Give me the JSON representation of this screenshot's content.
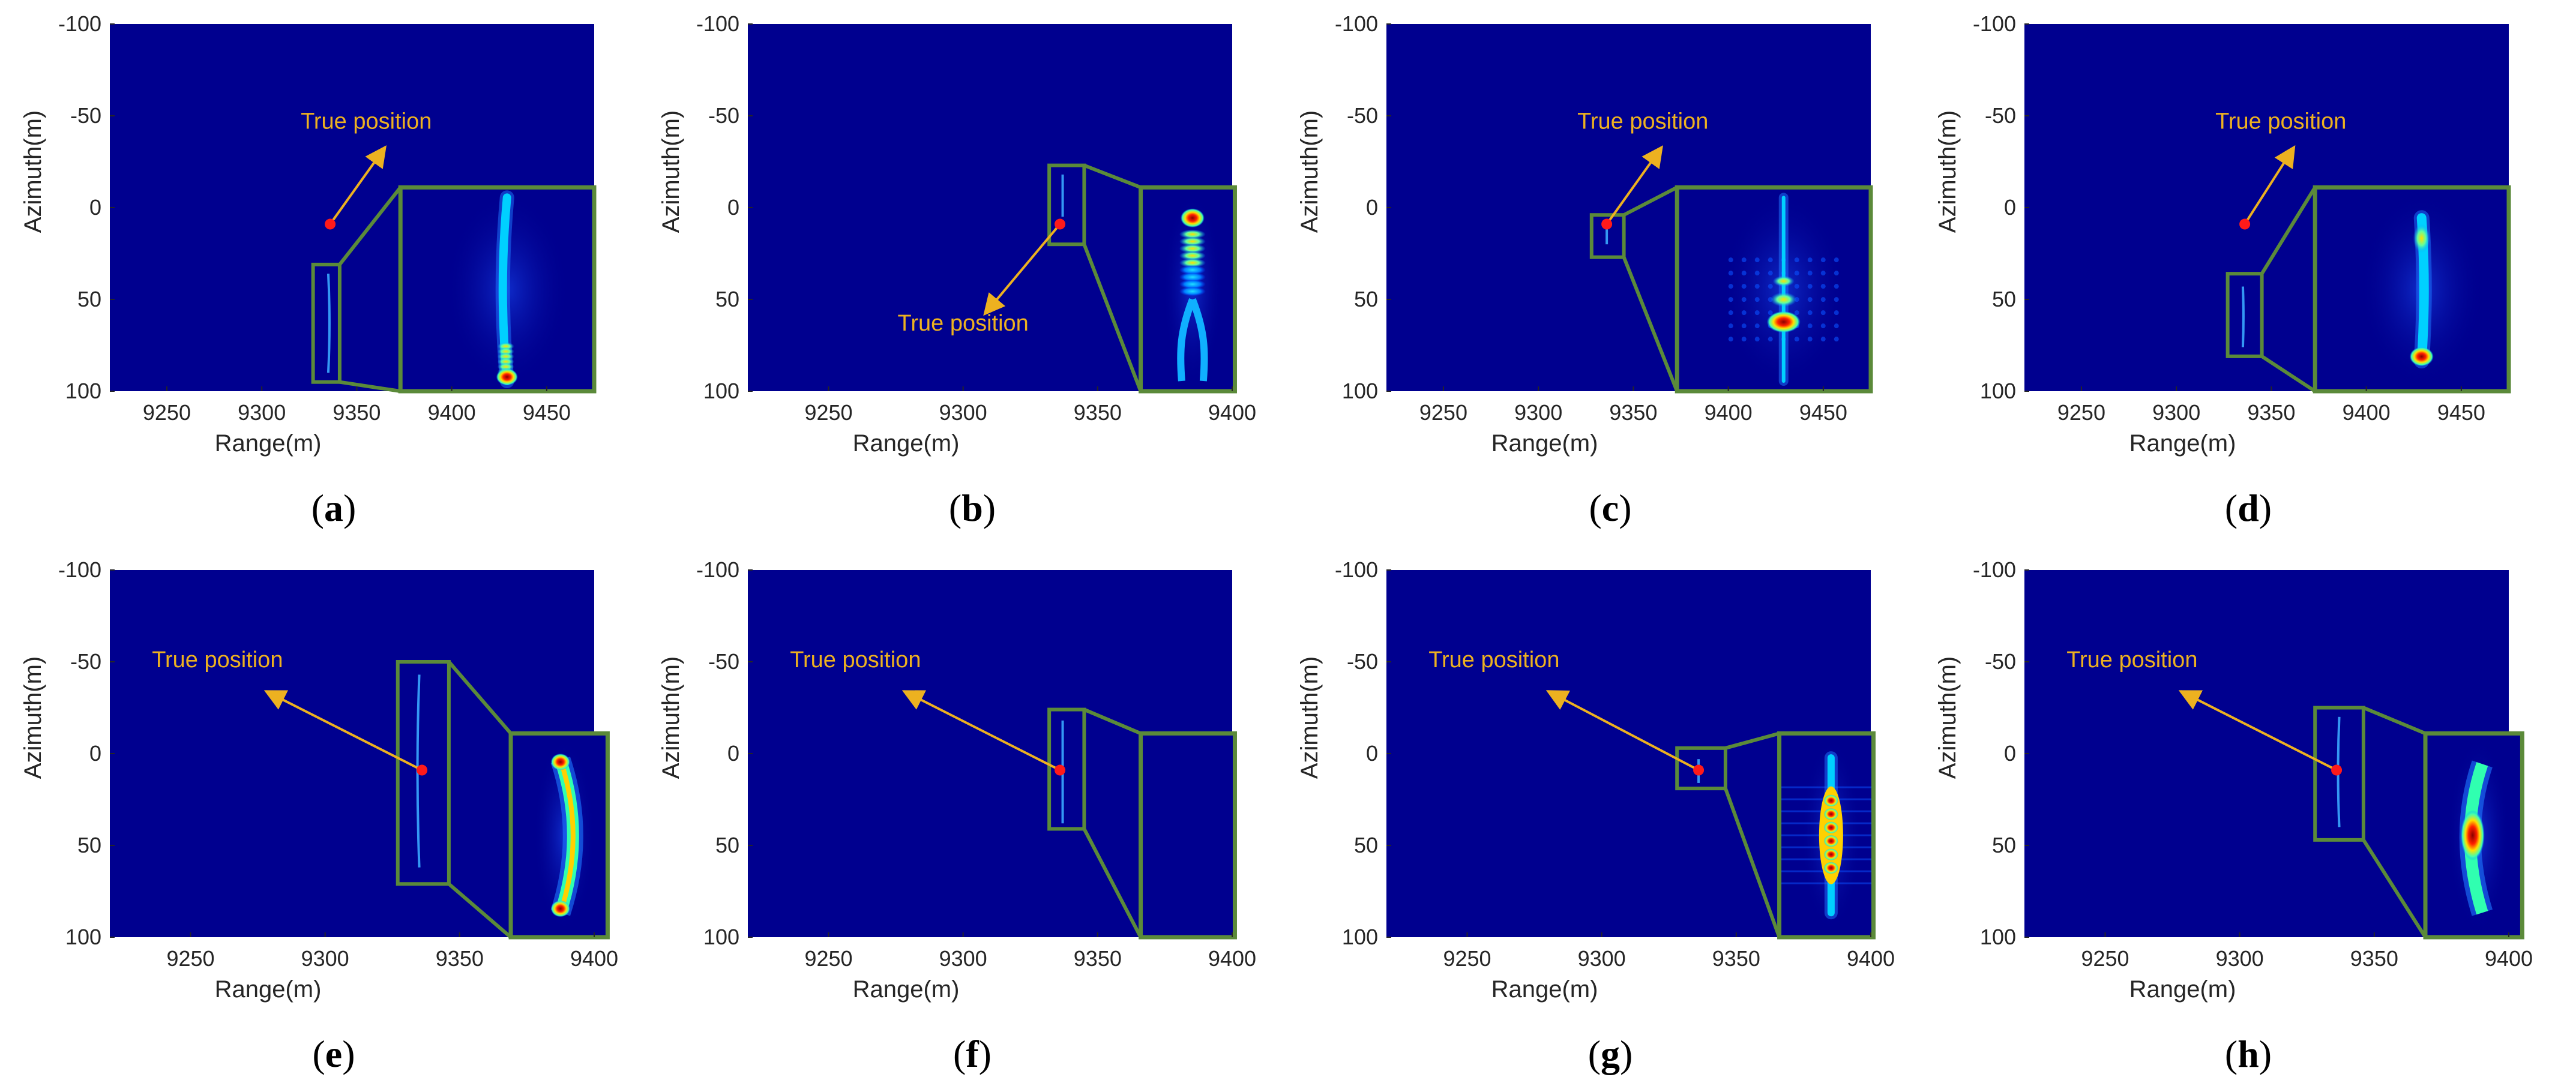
{
  "colors": {
    "background": "#00008F",
    "box": "#5B8A3A",
    "annotation": "#EDB120",
    "true_position": "#FF1A1A",
    "axis_text": "#262626"
  },
  "chart_data": [
    {
      "type": "heatmap",
      "caption": "a",
      "xlabel": "Range(m)",
      "ylabel": "Azimuth(m)",
      "xlim": [
        9220,
        9475
      ],
      "ylim": [
        -100,
        100
      ],
      "y_reversed": true,
      "x_ticks": [
        "9250",
        "9300",
        "9350",
        "9400",
        "9450"
      ],
      "y_ticks": [
        "-100",
        "-50",
        "0",
        "50",
        "100"
      ],
      "true_position": {
        "x": 9336,
        "y": 9
      },
      "annotation": {
        "text": "True position",
        "from": [
          9336,
          9
        ],
        "to": [
          9365,
          -33
        ],
        "label_at": [
          9355,
          -43
        ]
      },
      "zoom_box": {
        "x": [
          9327,
          9341
        ],
        "y": [
          31,
          95
        ]
      },
      "inset": {
        "x": [
          9373,
          9475
        ],
        "y": [
          -11,
          100
        ]
      },
      "target_trace": {
        "x": 9335,
        "y": [
          36,
          90
        ],
        "curve": 1
      },
      "inset_shape": "curved-streak-bright-end"
    },
    {
      "type": "heatmap",
      "caption": "b",
      "xlabel": "Range(m)",
      "ylabel": "Azimuth(m)",
      "xlim": [
        9220,
        9400
      ],
      "ylim": [
        -100,
        100
      ],
      "y_reversed": true,
      "x_ticks": [
        "9250",
        "9300",
        "9350",
        "9400"
      ],
      "y_ticks": [
        "-100",
        "-50",
        "0",
        "50",
        "100"
      ],
      "true_position": {
        "x": 9336,
        "y": 9
      },
      "annotation": {
        "text": "True position",
        "from": [
          9336,
          9
        ],
        "to": [
          9308,
          58
        ],
        "label_at": [
          9300,
          67
        ]
      },
      "zoom_box": {
        "x": [
          9332,
          9345
        ],
        "y": [
          -23,
          20
        ]
      },
      "inset": {
        "x": [
          9366,
          9401
        ],
        "y": [
          -11,
          100
        ]
      },
      "target_trace": {
        "x": 9337,
        "y": [
          -18,
          5
        ],
        "curve": 0
      },
      "inset_shape": "beads-then-split"
    },
    {
      "type": "heatmap",
      "caption": "c",
      "xlabel": "Range(m)",
      "ylabel": "Azimuth(m)",
      "xlim": [
        9220,
        9475
      ],
      "ylim": [
        -100,
        100
      ],
      "y_reversed": true,
      "x_ticks": [
        "9250",
        "9300",
        "9350",
        "9400",
        "9450"
      ],
      "y_ticks": [
        "-100",
        "-50",
        "0",
        "50",
        "100"
      ],
      "true_position": {
        "x": 9336,
        "y": 9
      },
      "annotation": {
        "text": "True position",
        "from": [
          9336,
          9
        ],
        "to": [
          9365,
          -33
        ],
        "label_at": [
          9355,
          -43
        ]
      },
      "zoom_box": {
        "x": [
          9328,
          9345
        ],
        "y": [
          4,
          27
        ]
      },
      "inset": {
        "x": [
          9373,
          9475
        ],
        "y": [
          -11,
          100
        ]
      },
      "target_trace": {
        "x": 9336,
        "y": [
          10,
          20
        ],
        "curve": 0
      },
      "inset_shape": "point-sidelobes"
    },
    {
      "type": "heatmap",
      "caption": "d",
      "xlabel": "Range(m)",
      "ylabel": "Azimuth(m)",
      "xlim": [
        9220,
        9475
      ],
      "ylim": [
        -100,
        100
      ],
      "y_reversed": true,
      "x_ticks": [
        "9250",
        "9300",
        "9350",
        "9400",
        "9450"
      ],
      "y_ticks": [
        "-100",
        "-50",
        "0",
        "50",
        "100"
      ],
      "true_position": {
        "x": 9336,
        "y": 9
      },
      "annotation": {
        "text": "True position",
        "from": [
          9336,
          9
        ],
        "to": [
          9362,
          -33
        ],
        "label_at": [
          9355,
          -43
        ]
      },
      "zoom_box": {
        "x": [
          9327,
          9345
        ],
        "y": [
          36,
          81
        ]
      },
      "inset": {
        "x": [
          9373,
          9475
        ],
        "y": [
          -11,
          100
        ]
      },
      "target_trace": {
        "x": 9335,
        "y": [
          43,
          76
        ],
        "curve": 0.5
      },
      "inset_shape": "streak-bright-end"
    },
    {
      "type": "heatmap",
      "caption": "e",
      "xlabel": "Range(m)",
      "ylabel": "Azimuth(m)",
      "xlim": [
        9220,
        9400
      ],
      "ylim": [
        -100,
        100
      ],
      "y_reversed": true,
      "x_ticks": [
        "9250",
        "9300",
        "9350",
        "9400"
      ],
      "y_ticks": [
        "-100",
        "-50",
        "0",
        "50",
        "100"
      ],
      "true_position": {
        "x": 9336,
        "y": 9
      },
      "annotation": {
        "text": "True position",
        "from": [
          9336,
          9
        ],
        "to": [
          9278,
          -34
        ],
        "label_at": [
          9260,
          -47
        ]
      },
      "zoom_box": {
        "x": [
          9327,
          9346
        ],
        "y": [
          -50,
          71
        ]
      },
      "inset": {
        "x": [
          9369,
          9405
        ],
        "y": [
          -11,
          100
        ]
      },
      "target_trace": {
        "x": 9335,
        "y": [
          -43,
          62
        ],
        "curve": -1.5
      },
      "inset_shape": "long-arc-bright-ends"
    },
    {
      "type": "heatmap",
      "caption": "f",
      "xlabel": "Range(m)",
      "ylabel": "Azimuth(m)",
      "xlim": [
        9220,
        9400
      ],
      "ylim": [
        -100,
        100
      ],
      "y_reversed": true,
      "x_ticks": [
        "9250",
        "9300",
        "9350",
        "9400"
      ],
      "y_ticks": [
        "-100",
        "-50",
        "0",
        "50",
        "100"
      ],
      "true_position": {
        "x": 9336,
        "y": 9
      },
      "annotation": {
        "text": "True position",
        "from": [
          9336,
          9
        ],
        "to": [
          9278,
          -34
        ],
        "label_at": [
          9260,
          -47
        ]
      },
      "zoom_box": {
        "x": [
          9332,
          9345
        ],
        "y": [
          -24,
          41
        ]
      },
      "inset": {
        "x": [
          9366,
          9401
        ],
        "y": [
          -11,
          100
        ]
      },
      "target_trace": {
        "x": 9337,
        "y": [
          -18,
          38
        ],
        "curve": 0
      },
      "inset_shape": "streak-bright-ends"
    },
    {
      "type": "heatmap",
      "caption": "g",
      "xlabel": "Range(m)",
      "ylabel": "Azimuth(m)",
      "xlim": [
        9220,
        9400
      ],
      "ylim": [
        -100,
        100
      ],
      "y_reversed": true,
      "x_ticks": [
        "9250",
        "9300",
        "9350",
        "9400"
      ],
      "y_ticks": [
        "-100",
        "-50",
        "0",
        "50",
        "100"
      ],
      "true_position": {
        "x": 9336,
        "y": 9
      },
      "annotation": {
        "text": "True position",
        "from": [
          9336,
          9
        ],
        "to": [
          9280,
          -34
        ],
        "label_at": [
          9260,
          -47
        ]
      },
      "zoom_box": {
        "x": [
          9328,
          9346
        ],
        "y": [
          -3,
          19
        ]
      },
      "inset": {
        "x": [
          9366,
          9401
        ],
        "y": [
          -11,
          100
        ]
      },
      "target_trace": {
        "x": 9336,
        "y": [
          3,
          16
        ],
        "curve": 0
      },
      "inset_shape": "bright-center-beads"
    },
    {
      "type": "heatmap",
      "caption": "h",
      "xlabel": "Range(m)",
      "ylabel": "Azimuth(m)",
      "xlim": [
        9220,
        9400
      ],
      "ylim": [
        -100,
        100
      ],
      "y_reversed": true,
      "x_ticks": [
        "9250",
        "9300",
        "9350",
        "9400"
      ],
      "y_ticks": [
        "-100",
        "-50",
        "0",
        "50",
        "100"
      ],
      "true_position": {
        "x": 9336,
        "y": 9
      },
      "annotation": {
        "text": "True position",
        "from": [
          9336,
          9
        ],
        "to": [
          9278,
          -34
        ],
        "label_at": [
          9260,
          -47
        ]
      },
      "zoom_box": {
        "x": [
          9328,
          9346
        ],
        "y": [
          -25,
          47
        ]
      },
      "inset": {
        "x": [
          9369,
          9405
        ],
        "y": [
          -11,
          100
        ]
      },
      "target_trace": {
        "x": 9337,
        "y": [
          -20,
          40
        ],
        "curve": -1
      },
      "inset_shape": "arc-bright-middle"
    }
  ]
}
